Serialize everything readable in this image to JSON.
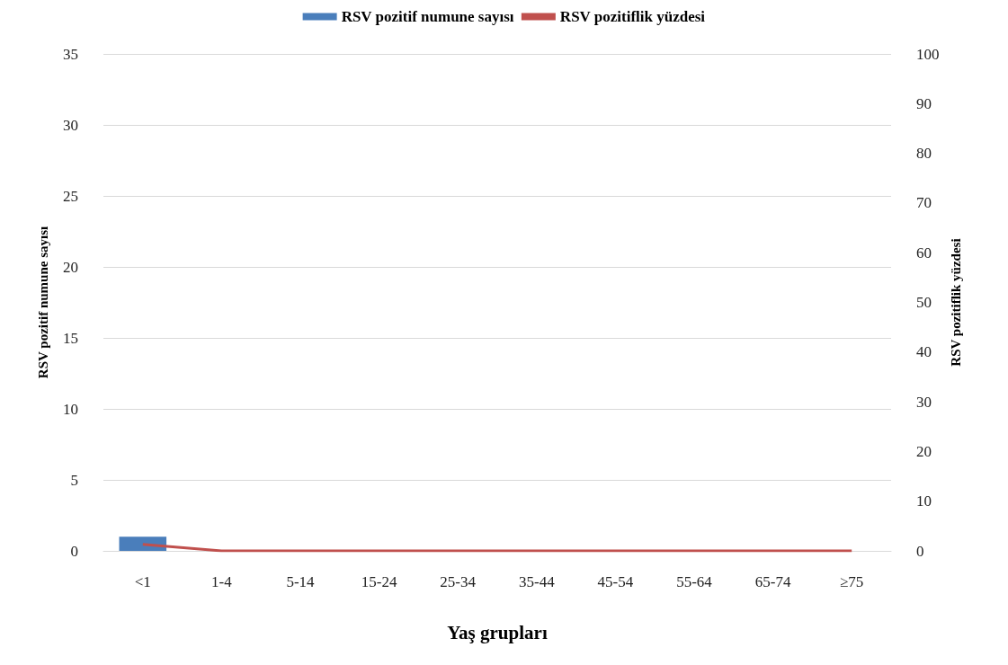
{
  "chart_data": {
    "type": "bar",
    "xlabel": "Yaş grupları",
    "ylabel": "RSV pozitif numune sayısı",
    "y2label": "RSV pozitiflik yüzdesi",
    "categories": [
      "<1",
      "1-4",
      "5-14",
      "15-24",
      "25-34",
      "35-44",
      "45-54",
      "55-64",
      "65-74",
      "≥75"
    ],
    "series": [
      {
        "name": "RSV pozitif numune sayısı",
        "color": "#4a7ebb",
        "values": [
          1,
          0,
          0,
          0,
          0,
          0,
          0,
          0,
          0,
          0
        ]
      },
      {
        "name": "RSV pozitiflik yüzdesi",
        "type": "line",
        "axis": "y2",
        "color": "#c0504d",
        "values": [
          1.3,
          0,
          0,
          0,
          0,
          0,
          0,
          0,
          0,
          0
        ]
      }
    ],
    "ylim": [
      0,
      35
    ],
    "yticks": [
      0,
      5,
      10,
      15,
      20,
      25,
      30,
      35
    ],
    "y2lim": [
      0,
      100
    ],
    "y2ticks": [
      0,
      10,
      20,
      30,
      40,
      50,
      60,
      70,
      80,
      90,
      100
    ],
    "grid": "y",
    "legend": "top",
    "marker": "none"
  }
}
